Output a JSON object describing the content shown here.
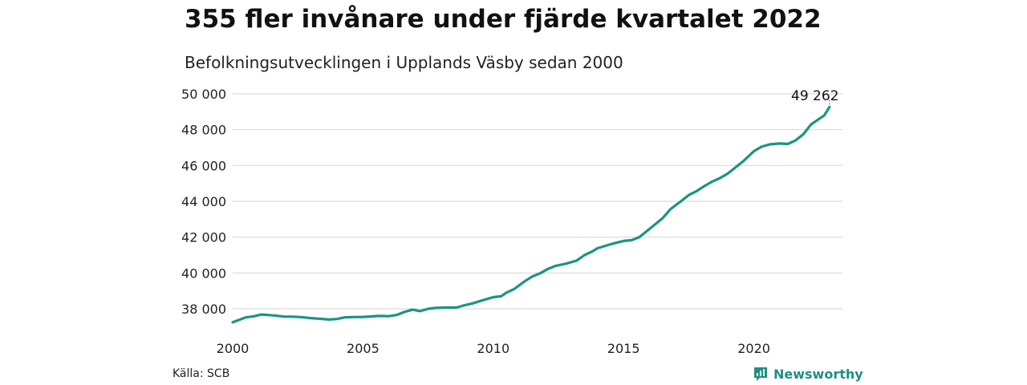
{
  "header": {
    "title": "355 fler invånare under fjärde kvartalet 2022",
    "subtitle": "Befolkningsutvecklingen i Upplands Väsby sedan 2000"
  },
  "footer": {
    "source": "Källa: SCB",
    "brand": "Newsworthy"
  },
  "colors": {
    "line": "#1b9483",
    "grid": "#d9d9d9",
    "brand": "#1e8f80"
  },
  "chart_data": {
    "type": "line",
    "title": "355 fler invånare under fjärde kvartalet 2022",
    "subtitle": "Befolkningsutvecklingen i Upplands Väsby sedan 2000",
    "xlabel": "",
    "ylabel": "",
    "xlim": [
      2000,
      2023.4
    ],
    "ylim": [
      37000,
      50400
    ],
    "x_ticks": [
      2000,
      2005,
      2010,
      2015,
      2020
    ],
    "x_tick_labels": [
      "2000",
      "2005",
      "2010",
      "2015",
      "2020"
    ],
    "y_ticks": [
      38000,
      40000,
      42000,
      44000,
      46000,
      48000,
      50000
    ],
    "y_tick_labels": [
      "38 000",
      "40 000",
      "42 000",
      "44 000",
      "46 000",
      "48 000",
      "50 000"
    ],
    "grid": true,
    "annotation": {
      "x": 2022.9,
      "y": 49262,
      "label": "49 262"
    },
    "series": [
      {
        "x": [
          2000.0,
          2000.5,
          2000.8,
          2001.1,
          2001.4,
          2001.7,
          2002.0,
          2002.3,
          2002.6,
          2003.0,
          2003.3,
          2003.7,
          2004.0,
          2004.3,
          2004.6,
          2005.0,
          2005.3,
          2005.6,
          2006.0,
          2006.3,
          2006.6,
          2006.9,
          2007.2,
          2007.5,
          2007.8,
          2008.2,
          2008.6,
          2008.9,
          2009.2,
          2009.6,
          2010.0,
          2010.3,
          2010.5,
          2010.8,
          2011.2,
          2011.5,
          2011.8,
          2012.1,
          2012.4,
          2012.8,
          2013.2,
          2013.5,
          2013.8,
          2014.0,
          2014.4,
          2014.7,
          2015.0,
          2015.3,
          2015.6,
          2016.0,
          2016.5,
          2016.8,
          2017.2,
          2017.5,
          2017.8,
          2018.1,
          2018.4,
          2018.7,
          2019.0,
          2019.3,
          2019.6,
          2020.0,
          2020.3,
          2020.6,
          2021.0,
          2021.3,
          2021.6,
          2021.9,
          2022.2,
          2022.5,
          2022.7,
          2022.9
        ],
        "values": [
          37250,
          37520,
          37580,
          37680,
          37650,
          37610,
          37560,
          37560,
          37540,
          37480,
          37450,
          37400,
          37430,
          37520,
          37540,
          37550,
          37570,
          37600,
          37590,
          37660,
          37830,
          37950,
          37870,
          38000,
          38050,
          38070,
          38070,
          38200,
          38300,
          38480,
          38650,
          38700,
          38900,
          39100,
          39530,
          39810,
          39980,
          40230,
          40400,
          40520,
          40690,
          41000,
          41200,
          41380,
          41560,
          41680,
          41790,
          41830,
          42000,
          42470,
          43060,
          43560,
          44000,
          44350,
          44570,
          44850,
          45100,
          45300,
          45550,
          45900,
          46250,
          46800,
          47050,
          47180,
          47230,
          47200,
          47400,
          47750,
          48300,
          48600,
          48800,
          49262
        ]
      }
    ]
  }
}
